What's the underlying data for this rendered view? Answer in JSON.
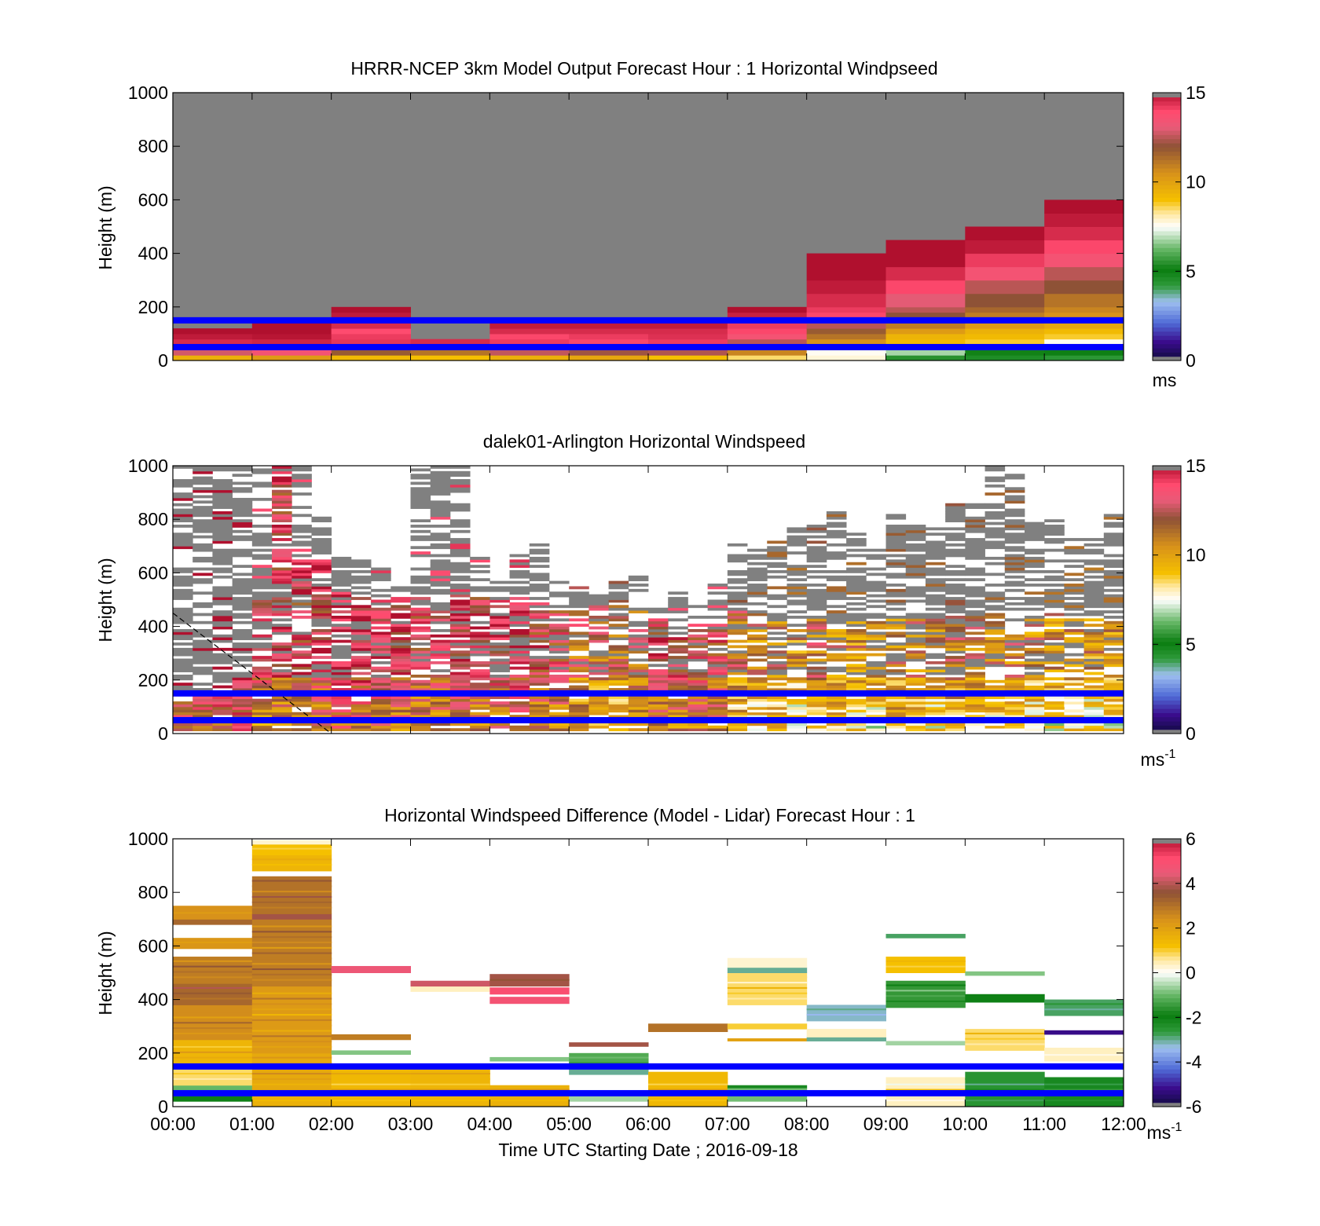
{
  "figure": {
    "xlabel": "Time UTC  Starting Date ; 2016-09-18",
    "x_ticks": [
      "00:00",
      "01:00",
      "02:00",
      "03:00",
      "04:00",
      "05:00",
      "06:00",
      "07:00",
      "08:00",
      "09:00",
      "10:00",
      "11:00",
      "12:00"
    ],
    "y_ticks": [
      "0",
      "200",
      "400",
      "600",
      "800",
      "1000"
    ],
    "ylabel": "Height (m)",
    "guide_lines": {
      "color": "#0000ff",
      "heights_m": [
        50,
        150
      ]
    }
  },
  "chart_data": [
    {
      "type": "heatmap",
      "title": "HRRR-NCEP 3km Model Output   Forecast Hour : 1 Horizontal Windpseed",
      "ylabel": "Height (m)",
      "xlim": [
        0,
        12
      ],
      "ylim": [
        0,
        1000
      ],
      "grid": false,
      "colorbar": {
        "min": 0,
        "max": 15,
        "ticks": [
          "0",
          "5",
          "10",
          "15"
        ],
        "unit": "ms"
      },
      "no_data_color": "#808080",
      "bins_m": [
        0,
        20,
        40,
        60,
        80,
        100,
        120,
        140,
        160,
        180,
        200,
        250,
        300,
        350,
        400,
        450,
        500,
        550,
        600
      ],
      "columns": [
        {
          "hour": 0,
          "values": [
            9.5,
            12.8,
            13.5,
            14.5,
            14.8,
            15.0
          ]
        },
        {
          "hour": 1,
          "values": [
            10.2,
            13.5,
            14.0,
            14.6,
            14.9,
            15.0,
            15.0,
            15.1
          ]
        },
        {
          "hour": 2,
          "values": [
            9.2,
            11.8,
            13.8,
            14.3,
            14.2,
            13.9,
            14.5,
            14.8,
            14.8,
            15.0
          ]
        },
        {
          "hour": 3,
          "values": [
            9.0,
            11.2,
            12.4,
            14.5
          ]
        },
        {
          "hour": 4,
          "values": [
            9.5,
            12.6,
            13.8,
            14.2,
            14.0,
            14.5,
            14.8,
            15.0
          ]
        },
        {
          "hour": 5,
          "values": [
            9.8,
            12.2,
            13.2,
            14.0,
            14.2,
            14.5,
            14.8,
            15.0
          ]
        },
        {
          "hour": 6,
          "values": [
            9.0,
            12.4,
            13.5,
            14.2,
            14.4,
            14.5,
            14.8,
            15.0
          ]
        },
        {
          "hour": 7,
          "values": [
            8.5,
            10.8,
            11.5,
            12.5,
            13.5,
            14.0,
            14.2,
            14.5,
            14.7,
            15.0
          ]
        },
        {
          "hour": 8,
          "values": [
            7.8,
            7.6,
            9.6,
            10.5,
            11.2,
            11.8,
            12.5,
            13.3,
            14.0,
            14.2,
            14.5,
            14.8,
            15.0,
            15.1
          ]
        },
        {
          "hour": 9,
          "values": [
            5.5,
            6.8,
            8.6,
            9.2,
            9.4,
            10.2,
            11.0,
            11.5,
            12.0,
            12.5,
            13.0,
            14.0,
            14.5,
            15.0,
            15.1
          ]
        },
        {
          "hour": 10,
          "values": [
            4.6,
            5.2,
            7.2,
            8.8,
            9.2,
            9.5,
            10.2,
            10.6,
            11.0,
            11.5,
            12.0,
            12.5,
            13.5,
            14.2,
            14.8,
            15.1
          ]
        },
        {
          "hour": 11,
          "values": [
            4.3,
            5.0,
            6.8,
            7.6,
            8.8,
            9.2,
            9.8,
            10.2,
            10.5,
            10.8,
            11.2,
            12.0,
            12.5,
            13.5,
            14.0,
            14.5,
            14.8,
            15.1
          ]
        }
      ]
    },
    {
      "type": "heatmap",
      "title": "dalek01-Arlington  Horizontal Windspeed",
      "ylabel": "Height (m)",
      "xlim": [
        0,
        12
      ],
      "ylim": [
        0,
        1000
      ],
      "grid": false,
      "colorbar": {
        "min": 0,
        "max": 15,
        "ticks": [
          "0",
          "5",
          "10",
          "15"
        ],
        "unit": "ms",
        "unit_exponent": "-1"
      },
      "no_data_color": "#808080",
      "annotation_line": {
        "style": "dashed",
        "from": [
          0,
          450
        ],
        "to": [
          2,
          0
        ]
      },
      "lidar_profile": {
        "columns_per_hour": 4,
        "mean_speed_by_column": [
          13.8,
          13.9,
          14.0,
          14.0,
          12.3,
          12.3,
          12.4,
          12.5,
          13.7,
          13.2,
          12.8,
          12.7,
          12.2,
          12.3,
          12.8,
          12.4,
          12.8,
          12.9,
          12.1,
          12.0,
          11.0,
          10.8,
          10.6,
          10.8,
          12.5,
          12.3,
          12.4,
          12.2,
          10.5,
          10.1,
          10.0,
          9.7,
          10.6,
          10.0,
          9.8,
          9.6,
          10.3,
          10.2,
          10.0,
          10.6,
          10.3,
          10.0,
          10.2,
          9.9,
          9.7,
          9.8,
          9.5,
          9.8
        ],
        "data_top_m_by_column": [
          1000,
          1000,
          1000,
          1000,
          1000,
          1000,
          1000,
          800,
          650,
          640,
          610,
          560,
          1000,
          1000,
          1000,
          660,
          560,
          660,
          720,
          560,
          540,
          510,
          560,
          580,
          460,
          520,
          480,
          560,
          700,
          700,
          710,
          820,
          770,
          820,
          740,
          680,
          810,
          780,
          760,
          870,
          850,
          1000,
          960,
          780,
          800,
          720,
          720,
          810
        ],
        "gray_bottom_m_by_column": [
          150,
          150,
          180,
          210,
          500,
          1000,
          660,
          640,
          530,
          520,
          480,
          480,
          510,
          460,
          520,
          520,
          500,
          520,
          480,
          480,
          460,
          480,
          480,
          460,
          420,
          400,
          400,
          420,
          460,
          440,
          420,
          400,
          430,
          420,
          420,
          420,
          440,
          430,
          430,
          460,
          440,
          440,
          420,
          430,
          460,
          440,
          440,
          440
        ]
      }
    },
    {
      "type": "heatmap",
      "title": "Horizontal Windspeed Difference (Model - Lidar) Forecast Hour : 1",
      "xlabel": "Time UTC  Starting Date ; 2016-09-18",
      "ylabel": "Height (m)",
      "xlim": [
        0,
        12
      ],
      "ylim": [
        0,
        1000
      ],
      "grid": false,
      "colorbar": {
        "min": -6,
        "max": 6,
        "ticks": [
          "-6",
          "-4",
          "-2",
          "0",
          "2",
          "4",
          "6"
        ],
        "unit": "ms",
        "unit_exponent": "-1"
      },
      "bands": [
        {
          "hour": 0,
          "from_m": 20,
          "to_m": 40,
          "value": -2.0
        },
        {
          "hour": 0,
          "from_m": 40,
          "to_m": 60,
          "value": -3.5
        },
        {
          "hour": 0,
          "from_m": 60,
          "to_m": 80,
          "value": -1.0
        },
        {
          "hour": 0,
          "from_m": 80,
          "to_m": 140,
          "value": 0.8
        },
        {
          "hour": 0,
          "from_m": 140,
          "to_m": 250,
          "value": 1.5
        },
        {
          "hour": 0,
          "from_m": 250,
          "to_m": 380,
          "value": 2.5
        },
        {
          "hour": 0,
          "from_m": 380,
          "to_m": 460,
          "value": 3.2
        },
        {
          "hour": 0,
          "from_m": 460,
          "to_m": 560,
          "value": 2.8
        },
        {
          "hour": 0,
          "from_m": 590,
          "to_m": 630,
          "value": 2.3
        },
        {
          "hour": 0,
          "from_m": 680,
          "to_m": 700,
          "value": 3.2
        },
        {
          "hour": 0,
          "from_m": 700,
          "to_m": 750,
          "value": 2.4
        },
        {
          "hour": 1,
          "from_m": 0,
          "to_m": 60,
          "value": 1.6
        },
        {
          "hour": 1,
          "from_m": 60,
          "to_m": 200,
          "value": 1.8
        },
        {
          "hour": 1,
          "from_m": 200,
          "to_m": 450,
          "value": 2.2
        },
        {
          "hour": 1,
          "from_m": 450,
          "to_m": 700,
          "value": 2.8
        },
        {
          "hour": 1,
          "from_m": 700,
          "to_m": 720,
          "value": 3.8
        },
        {
          "hour": 1,
          "from_m": 720,
          "to_m": 860,
          "value": 3.0
        },
        {
          "hour": 1,
          "from_m": 880,
          "to_m": 940,
          "value": 1.5
        },
        {
          "hour": 1,
          "from_m": 940,
          "to_m": 980,
          "value": 1.2
        },
        {
          "hour": 1,
          "from_m": 980,
          "to_m": 995,
          "value": 0.3
        },
        {
          "hour": 2,
          "from_m": 0,
          "to_m": 150,
          "value": 1.4
        },
        {
          "hour": 2,
          "from_m": 195,
          "to_m": 210,
          "value": -0.8
        },
        {
          "hour": 2,
          "from_m": 250,
          "to_m": 270,
          "value": 2.8
        },
        {
          "hour": 2,
          "from_m": 500,
          "to_m": 525,
          "value": 4.6
        },
        {
          "hour": 3,
          "from_m": 0,
          "to_m": 140,
          "value": 1.5
        },
        {
          "hour": 3,
          "from_m": 430,
          "to_m": 450,
          "value": 0.4
        },
        {
          "hour": 3,
          "from_m": 450,
          "to_m": 470,
          "value": 4.2
        },
        {
          "hour": 4,
          "from_m": 0,
          "to_m": 80,
          "value": 1.6
        },
        {
          "hour": 4,
          "from_m": 170,
          "to_m": 185,
          "value": -0.8
        },
        {
          "hour": 4,
          "from_m": 385,
          "to_m": 410,
          "value": 4.8
        },
        {
          "hour": 4,
          "from_m": 420,
          "to_m": 445,
          "value": 5.0
        },
        {
          "hour": 4,
          "from_m": 450,
          "to_m": 495,
          "value": 3.8
        },
        {
          "hour": 5,
          "from_m": 20,
          "to_m": 60,
          "value": -0.6
        },
        {
          "hour": 5,
          "from_m": 120,
          "to_m": 140,
          "value": -3.0
        },
        {
          "hour": 5,
          "from_m": 140,
          "to_m": 200,
          "value": -1.2
        },
        {
          "hour": 5,
          "from_m": 225,
          "to_m": 240,
          "value": 3.8
        },
        {
          "hour": 6,
          "from_m": 0,
          "to_m": 130,
          "value": 1.4
        },
        {
          "hour": 6,
          "from_m": 280,
          "to_m": 310,
          "value": 3.0
        },
        {
          "hour": 7,
          "from_m": 20,
          "to_m": 70,
          "value": -0.9
        },
        {
          "hour": 7,
          "from_m": 70,
          "to_m": 80,
          "value": -2.2
        },
        {
          "hour": 7,
          "from_m": 245,
          "to_m": 255,
          "value": 2.0
        },
        {
          "hour": 7,
          "from_m": 290,
          "to_m": 310,
          "value": 1.0
        },
        {
          "hour": 7,
          "from_m": 380,
          "to_m": 500,
          "value": 0.8
        },
        {
          "hour": 7,
          "from_m": 500,
          "to_m": 520,
          "value": -3.0
        },
        {
          "hour": 7,
          "from_m": 520,
          "to_m": 555,
          "value": 0.3
        },
        {
          "hour": 8,
          "from_m": 190,
          "to_m": 210,
          "value": 0.0
        },
        {
          "hour": 8,
          "from_m": 245,
          "to_m": 260,
          "value": -3.0
        },
        {
          "hour": 8,
          "from_m": 260,
          "to_m": 290,
          "value": 0.4
        },
        {
          "hour": 8,
          "from_m": 320,
          "to_m": 380,
          "value": -3.2
        },
        {
          "hour": 9,
          "from_m": 0,
          "to_m": 110,
          "value": 0.4
        },
        {
          "hour": 9,
          "from_m": 230,
          "to_m": 245,
          "value": -0.6
        },
        {
          "hour": 9,
          "from_m": 370,
          "to_m": 470,
          "value": -1.5
        },
        {
          "hour": 9,
          "from_m": 500,
          "to_m": 560,
          "value": 1.2
        },
        {
          "hour": 9,
          "from_m": 630,
          "to_m": 645,
          "value": -2.8
        },
        {
          "hour": 10,
          "from_m": 0,
          "to_m": 130,
          "value": -2.5
        },
        {
          "hour": 10,
          "from_m": 210,
          "to_m": 290,
          "value": 0.8
        },
        {
          "hour": 10,
          "from_m": 390,
          "to_m": 420,
          "value": -2.0
        },
        {
          "hour": 10,
          "from_m": 490,
          "to_m": 505,
          "value": -0.8
        },
        {
          "hour": 11,
          "from_m": 0,
          "to_m": 110,
          "value": -2.2
        },
        {
          "hour": 11,
          "from_m": 170,
          "to_m": 220,
          "value": 0.4
        },
        {
          "hour": 11,
          "from_m": 270,
          "to_m": 285,
          "value": -5.2
        },
        {
          "hour": 11,
          "from_m": 340,
          "to_m": 400,
          "value": -2.8
        }
      ]
    }
  ]
}
